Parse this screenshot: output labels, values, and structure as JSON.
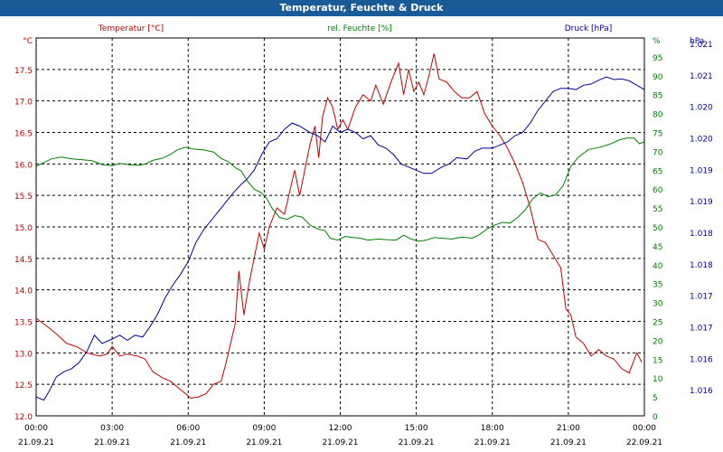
{
  "window": {
    "title": "Temperatur, Feuchte & Druck"
  },
  "colors": {
    "temperature": "#c00000",
    "humidity": "#008000",
    "pressure": "#0000a0",
    "titlebar": "#1a5a96",
    "grid": "#000000"
  },
  "chart_data": {
    "type": "line",
    "grid": true,
    "series": [
      {
        "name": "Temperatur [°C]",
        "unit_label": "°C",
        "axis": "left",
        "ylim": [
          12.0,
          18.0
        ],
        "ticks": [
          "12.0",
          "12.5",
          "13.0",
          "13.5",
          "14.0",
          "14.5",
          "15.0",
          "15.5",
          "16.0",
          "16.5",
          "17.0",
          "17.5"
        ],
        "points": [
          [
            0,
            13.55
          ],
          [
            0.5,
            13.4
          ],
          [
            0.8,
            13.3
          ],
          [
            1.2,
            13.15
          ],
          [
            1.6,
            13.1
          ],
          [
            2.0,
            13.0
          ],
          [
            2.5,
            12.95
          ],
          [
            2.8,
            12.98
          ],
          [
            3.0,
            13.1
          ],
          [
            3.3,
            12.95
          ],
          [
            3.6,
            12.98
          ],
          [
            4.0,
            12.95
          ],
          [
            4.3,
            12.9
          ],
          [
            4.6,
            12.7
          ],
          [
            5.0,
            12.6
          ],
          [
            5.3,
            12.55
          ],
          [
            5.6,
            12.45
          ],
          [
            5.9,
            12.35
          ],
          [
            6.1,
            12.28
          ],
          [
            6.4,
            12.3
          ],
          [
            6.7,
            12.35
          ],
          [
            7.0,
            12.5
          ],
          [
            7.3,
            12.55
          ],
          [
            7.5,
            12.85
          ],
          [
            7.7,
            13.2
          ],
          [
            7.85,
            13.45
          ],
          [
            8.0,
            14.3
          ],
          [
            8.2,
            13.6
          ],
          [
            8.4,
            14.1
          ],
          [
            8.6,
            14.5
          ],
          [
            8.8,
            14.9
          ],
          [
            9.0,
            14.65
          ],
          [
            9.2,
            15.0
          ],
          [
            9.5,
            15.3
          ],
          [
            9.8,
            15.2
          ],
          [
            10.0,
            15.55
          ],
          [
            10.2,
            15.9
          ],
          [
            10.4,
            15.5
          ],
          [
            10.6,
            15.9
          ],
          [
            10.8,
            16.3
          ],
          [
            11.0,
            16.6
          ],
          [
            11.15,
            16.1
          ],
          [
            11.3,
            16.75
          ],
          [
            11.5,
            17.05
          ],
          [
            11.7,
            16.9
          ],
          [
            11.9,
            16.55
          ],
          [
            12.1,
            16.7
          ],
          [
            12.3,
            16.55
          ],
          [
            12.6,
            16.9
          ],
          [
            12.9,
            17.1
          ],
          [
            13.2,
            17.0
          ],
          [
            13.4,
            17.25
          ],
          [
            13.7,
            16.95
          ],
          [
            14.0,
            17.3
          ],
          [
            14.3,
            17.6
          ],
          [
            14.5,
            17.1
          ],
          [
            14.7,
            17.5
          ],
          [
            14.9,
            17.15
          ],
          [
            15.1,
            17.3
          ],
          [
            15.3,
            17.1
          ],
          [
            15.5,
            17.4
          ],
          [
            15.7,
            17.75
          ],
          [
            15.9,
            17.35
          ],
          [
            16.2,
            17.3
          ],
          [
            16.5,
            17.15
          ],
          [
            16.8,
            17.05
          ],
          [
            17.1,
            17.05
          ],
          [
            17.4,
            17.15
          ],
          [
            17.7,
            16.8
          ],
          [
            18.0,
            16.6
          ],
          [
            18.3,
            16.45
          ],
          [
            18.6,
            16.25
          ],
          [
            18.9,
            16.0
          ],
          [
            19.2,
            15.7
          ],
          [
            19.5,
            15.3
          ],
          [
            19.8,
            14.8
          ],
          [
            20.1,
            14.75
          ],
          [
            20.4,
            14.55
          ],
          [
            20.7,
            14.35
          ],
          [
            20.9,
            13.7
          ],
          [
            21.1,
            13.6
          ],
          [
            21.3,
            13.25
          ],
          [
            21.6,
            13.15
          ],
          [
            21.9,
            12.95
          ],
          [
            22.2,
            13.05
          ],
          [
            22.5,
            12.95
          ],
          [
            22.8,
            12.9
          ],
          [
            23.1,
            12.75
          ],
          [
            23.4,
            12.68
          ],
          [
            23.7,
            13.0
          ],
          [
            23.9,
            12.85
          ]
        ]
      },
      {
        "name": "rel. Feuchte [%]",
        "unit_label": "%",
        "axis": "right",
        "ylim": [
          0,
          100
        ],
        "ticks": [
          "0",
          "5",
          "10",
          "15",
          "20",
          "25",
          "30",
          "35",
          "40",
          "45",
          "50",
          "55",
          "60",
          "65",
          "70",
          "75",
          "80",
          "85",
          "90",
          "95"
        ],
        "points": [
          [
            0,
            66
          ],
          [
            0.3,
            67
          ],
          [
            0.6,
            68
          ],
          [
            1.0,
            68.5
          ],
          [
            1.4,
            68
          ],
          [
            1.8,
            67.8
          ],
          [
            2.2,
            67.5
          ],
          [
            2.6,
            66.5
          ],
          [
            3.0,
            66.2
          ],
          [
            3.3,
            66.8
          ],
          [
            3.7,
            66.4
          ],
          [
            4.0,
            66.3
          ],
          [
            4.3,
            66.6
          ],
          [
            4.6,
            67.6
          ],
          [
            5.0,
            68.2
          ],
          [
            5.3,
            69.2
          ],
          [
            5.6,
            70.5
          ],
          [
            5.9,
            71.1
          ],
          [
            6.2,
            70.6
          ],
          [
            6.6,
            70.4
          ],
          [
            7.0,
            69.8
          ],
          [
            7.3,
            68.1
          ],
          [
            7.6,
            67.2
          ],
          [
            7.9,
            65.5
          ],
          [
            8.1,
            64.8
          ],
          [
            8.3,
            62.5
          ],
          [
            8.6,
            60.0
          ],
          [
            8.9,
            59.0
          ],
          [
            9.1,
            57.5
          ],
          [
            9.3,
            55.0
          ],
          [
            9.6,
            52.5
          ],
          [
            9.9,
            52.0
          ],
          [
            10.2,
            53.0
          ],
          [
            10.5,
            52.6
          ],
          [
            10.8,
            50.5
          ],
          [
            11.1,
            49.5
          ],
          [
            11.4,
            49.0
          ],
          [
            11.6,
            47.0
          ],
          [
            11.9,
            46.5
          ],
          [
            12.2,
            47.5
          ],
          [
            12.5,
            47.2
          ],
          [
            12.8,
            47.0
          ],
          [
            13.1,
            46.5
          ],
          [
            13.5,
            46.8
          ],
          [
            13.9,
            46.6
          ],
          [
            14.2,
            46.5
          ],
          [
            14.5,
            47.8
          ],
          [
            14.8,
            46.8
          ],
          [
            15.1,
            46.2
          ],
          [
            15.4,
            46.5
          ],
          [
            15.7,
            47.2
          ],
          [
            16.0,
            47.0
          ],
          [
            16.4,
            46.8
          ],
          [
            16.8,
            47.3
          ],
          [
            17.2,
            47.0
          ],
          [
            17.5,
            48.0
          ],
          [
            17.8,
            49.5
          ],
          [
            18.1,
            50.5
          ],
          [
            18.4,
            51.2
          ],
          [
            18.7,
            51.0
          ],
          [
            19.0,
            52.5
          ],
          [
            19.3,
            54.5
          ],
          [
            19.6,
            57.5
          ],
          [
            19.9,
            59.0
          ],
          [
            20.2,
            58.0
          ],
          [
            20.5,
            58.5
          ],
          [
            20.8,
            61.0
          ],
          [
            21.1,
            66.0
          ],
          [
            21.4,
            68.5
          ],
          [
            21.8,
            70.5
          ],
          [
            22.2,
            71.0
          ],
          [
            22.6,
            71.8
          ],
          [
            23.0,
            73.0
          ],
          [
            23.3,
            73.5
          ],
          [
            23.6,
            73.5
          ],
          [
            23.8,
            72.0
          ],
          [
            24.0,
            72.5
          ]
        ]
      },
      {
        "name": "Druck [hPa]",
        "unit_label": "hPa",
        "axis": "far-right",
        "ylim": [
          1015.7,
          1021.7
        ],
        "ticks": [
          "1.016",
          "1.016",
          "1.017",
          "1.017",
          "1.018",
          "1.018",
          "1.019",
          "1.019",
          "1.020",
          "1.020",
          "1.021",
          "1.021"
        ],
        "points": [
          [
            0,
            1016.0
          ],
          [
            0.3,
            1015.95
          ],
          [
            0.5,
            1016.08
          ],
          [
            0.8,
            1016.32
          ],
          [
            1.1,
            1016.4
          ],
          [
            1.4,
            1016.45
          ],
          [
            1.7,
            1016.55
          ],
          [
            2.0,
            1016.72
          ],
          [
            2.3,
            1016.98
          ],
          [
            2.6,
            1016.85
          ],
          [
            3.0,
            1016.92
          ],
          [
            3.3,
            1016.98
          ],
          [
            3.6,
            1016.9
          ],
          [
            3.9,
            1016.98
          ],
          [
            4.2,
            1016.95
          ],
          [
            4.5,
            1017.12
          ],
          [
            4.8,
            1017.32
          ],
          [
            5.1,
            1017.58
          ],
          [
            5.4,
            1017.78
          ],
          [
            5.7,
            1017.95
          ],
          [
            6.0,
            1018.15
          ],
          [
            6.3,
            1018.45
          ],
          [
            6.6,
            1018.65
          ],
          [
            6.9,
            1018.8
          ],
          [
            7.2,
            1018.95
          ],
          [
            7.5,
            1019.1
          ],
          [
            7.8,
            1019.25
          ],
          [
            8.1,
            1019.38
          ],
          [
            8.3,
            1019.45
          ],
          [
            8.6,
            1019.6
          ],
          [
            8.9,
            1019.85
          ],
          [
            9.2,
            1020.05
          ],
          [
            9.5,
            1020.1
          ],
          [
            9.8,
            1020.25
          ],
          [
            10.1,
            1020.35
          ],
          [
            10.4,
            1020.3
          ],
          [
            10.8,
            1020.2
          ],
          [
            11.1,
            1020.15
          ],
          [
            11.4,
            1020.05
          ],
          [
            11.7,
            1020.3
          ],
          [
            12.0,
            1020.2
          ],
          [
            12.3,
            1020.25
          ],
          [
            12.6,
            1020.2
          ],
          [
            12.9,
            1020.1
          ],
          [
            13.2,
            1020.15
          ],
          [
            13.5,
            1020.0
          ],
          [
            13.8,
            1019.95
          ],
          [
            14.1,
            1019.85
          ],
          [
            14.4,
            1019.7
          ],
          [
            14.7,
            1019.65
          ],
          [
            15.0,
            1019.6
          ],
          [
            15.3,
            1019.55
          ],
          [
            15.6,
            1019.55
          ],
          [
            16.0,
            1019.65
          ],
          [
            16.3,
            1019.7
          ],
          [
            16.6,
            1019.8
          ],
          [
            17.0,
            1019.78
          ],
          [
            17.3,
            1019.9
          ],
          [
            17.6,
            1019.95
          ],
          [
            18.0,
            1019.95
          ],
          [
            18.3,
            1020.0
          ],
          [
            18.6,
            1020.05
          ],
          [
            18.9,
            1020.15
          ],
          [
            19.2,
            1020.2
          ],
          [
            19.5,
            1020.35
          ],
          [
            19.8,
            1020.55
          ],
          [
            20.1,
            1020.7
          ],
          [
            20.4,
            1020.85
          ],
          [
            20.7,
            1020.9
          ],
          [
            21.0,
            1020.9
          ],
          [
            21.3,
            1020.88
          ],
          [
            21.6,
            1020.95
          ],
          [
            21.9,
            1020.97
          ],
          [
            22.2,
            1021.03
          ],
          [
            22.5,
            1021.08
          ],
          [
            22.8,
            1021.04
          ],
          [
            23.1,
            1021.05
          ],
          [
            23.4,
            1021.02
          ],
          [
            23.7,
            1020.95
          ],
          [
            24.0,
            1020.88
          ]
        ]
      }
    ],
    "x": {
      "range_hours": [
        0,
        24
      ],
      "tick_times": [
        "00:00",
        "03:00",
        "06:00",
        "09:00",
        "12:00",
        "15:00",
        "18:00",
        "21:00",
        "00:00"
      ],
      "tick_dates": [
        "21.09.21",
        "21.09.21",
        "21.09.21",
        "21.09.21",
        "21.09.21",
        "21.09.21",
        "21.09.21",
        "21.09.21",
        "22.09.21"
      ]
    }
  }
}
